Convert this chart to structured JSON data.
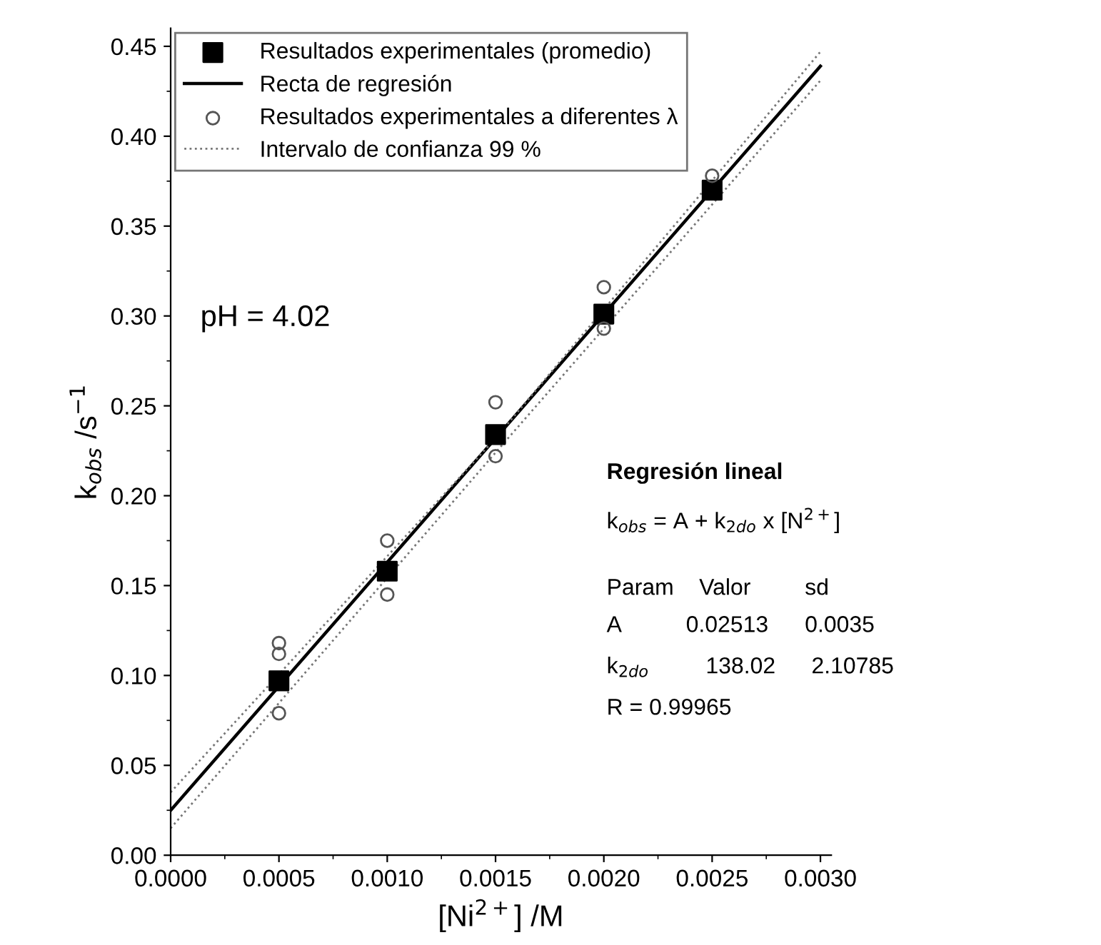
{
  "chart_data": {
    "type": "scatter",
    "xlabel": "[Ni$^{2+}$] /M",
    "ylabel": "k$_{obs}$ /s$^{−1}$",
    "xlim": [
      0,
      0.00305
    ],
    "ylim": [
      0,
      0.46
    ],
    "xticks": [
      {
        "value": 0,
        "label": "0.0000"
      },
      {
        "value": 0.0005,
        "label": "0.0005"
      },
      {
        "value": 0.001,
        "label": "0.0010"
      },
      {
        "value": 0.0015,
        "label": "0.0015"
      },
      {
        "value": 0.002,
        "label": "0.0020"
      },
      {
        "value": 0.0025,
        "label": "0.0025"
      },
      {
        "value": 0.003,
        "label": "0.0030"
      }
    ],
    "yticks": [
      {
        "value": 0,
        "label": "0.00"
      },
      {
        "value": 0.05,
        "label": "0.05"
      },
      {
        "value": 0.1,
        "label": "0.10"
      },
      {
        "value": 0.15,
        "label": "0.15"
      },
      {
        "value": 0.2,
        "label": "0.20"
      },
      {
        "value": 0.25,
        "label": "0.25"
      },
      {
        "value": 0.3,
        "label": "0.30"
      },
      {
        "value": 0.35,
        "label": "0.35"
      },
      {
        "value": 0.4,
        "label": "0.40"
      },
      {
        "value": 0.45,
        "label": "0.45"
      }
    ],
    "legend": "top left",
    "grid": false,
    "series": [
      {
        "name": "Resultados experimentales (promedio)",
        "marker": "square",
        "color": "#000000",
        "x": [
          0.0005,
          0.001,
          0.0015,
          0.002,
          0.0025
        ],
        "values": [
          0.097,
          0.158,
          0.234,
          0.301,
          0.37
        ]
      },
      {
        "name": "Recta de regresión",
        "type": "line",
        "marker": "none",
        "line_style": "solid",
        "color": "#000000",
        "x": [
          0,
          0.003
        ],
        "values": [
          0.025,
          0.439
        ]
      },
      {
        "name": "Resultados experimentales a diferentes λ",
        "marker": "circle",
        "color": "#555555",
        "x": [
          0.0005,
          0.0005,
          0.0005,
          0.001,
          0.001,
          0.0015,
          0.0015,
          0.002,
          0.002,
          0.0025
        ],
        "values": [
          0.118,
          0.112,
          0.079,
          0.175,
          0.145,
          0.252,
          0.222,
          0.316,
          0.293,
          0.378
        ]
      },
      {
        "name": "Intervalo de confianza 99 %",
        "type": "line",
        "marker": "none",
        "line_style": "dotted",
        "color": "#777777",
        "x": [
          0,
          0.0015,
          0.003
        ],
        "values": [
          0.035,
          0.232,
          0.447
        ]
      },
      {
        "type": "line",
        "marker": "none",
        "line_style": "dotted",
        "color": "#777777",
        "x": [
          0,
          0.0015,
          0.003
        ],
        "values": [
          0.015,
          0.224,
          0.431
        ]
      }
    ],
    "annotations": [
      "pH = 4.02",
      "Regresión lineal",
      "k$_{obs}$ = A + k$_{2do}$ x [N$^{2+}$]",
      "Param",
      "Valor",
      "sd",
      "A",
      "0.02513",
      "0.0035",
      "k$_{2do}$",
      "138.02",
      "2.10785",
      "R = 0.99965"
    ]
  }
}
